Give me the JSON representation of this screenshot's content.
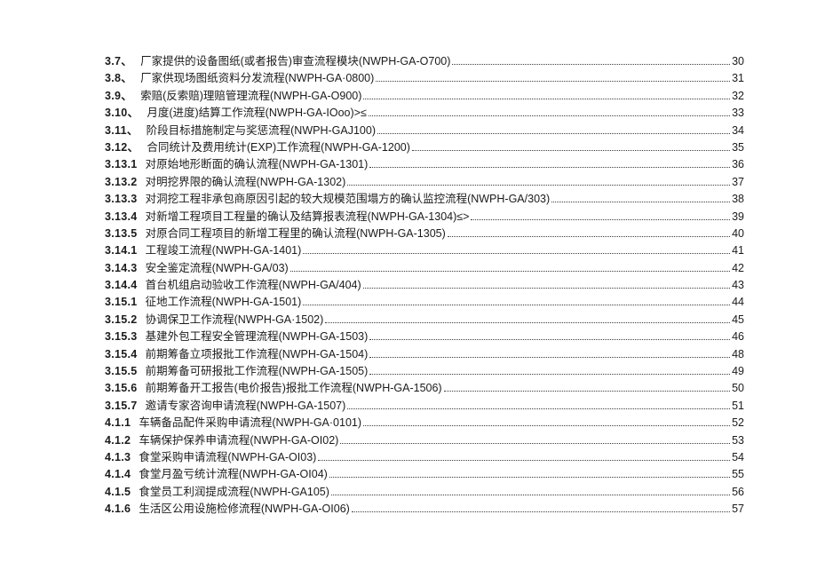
{
  "toc": {
    "text_color": "#1b1b1b",
    "leader_color": "#3c3c3c",
    "entries": [
      {
        "num": "3.7、",
        "title": "厂家提供的设备图纸(或者报告)审查流程模块(NWPH-GA-O700)",
        "page": "30"
      },
      {
        "num": "3.8、",
        "title": "厂家供现场图纸资料分发流程(NWPH-GA·0800)",
        "page": "31"
      },
      {
        "num": "3.9、",
        "title": "索赔(反索赔)理赔管理流程(NWPH-GA-O900)",
        "page": "32"
      },
      {
        "num": "3.10、",
        "title": "月度(进度)结算工作流程(NWPH-GA-IOoo)>≤",
        "page": "33"
      },
      {
        "num": "3.11、",
        "title": "阶段目标措施制定与奖惩流程(NWPH-GAJ100)",
        "page": "34"
      },
      {
        "num": "3.12、",
        "title": "合同统计及费用统计(EXP)工作流程(NWPH-GA-1200)",
        "page": "35"
      },
      {
        "num": "3.13.1",
        "title": "对原始地形断面的确认流程(NWPH-GA-1301)",
        "page": "36"
      },
      {
        "num": "3.13.2",
        "title": "对明挖界限的确认流程(NWPH-GA-1302)",
        "page": "37"
      },
      {
        "num": "3.13.3",
        "title": "对洞挖工程非承包商原因引起的较大规模范围塌方的确认监控流程(NWPH-GA/303)",
        "page": "38"
      },
      {
        "num": "3.13.4",
        "title": "对新增工程项目工程量的确认及结算报表流程(NWPH-GA-1304)≤>",
        "page": "39"
      },
      {
        "num": "3.13.5",
        "title": "对原合同工程项目的新增工程里的确认流程(NWPH-GA-1305)",
        "page": "40"
      },
      {
        "num": "3.14.1",
        "title": "工程竣工流程(NWPH-GA-1401)",
        "page": "41"
      },
      {
        "num": "3.14.3",
        "title": "安全鉴定流程(NWPH-GA/03)",
        "page": "42"
      },
      {
        "num": "3.14.4",
        "title": "首台机组启动验收工作流程(NWPH-GA/404)",
        "page": "43"
      },
      {
        "num": "3.15.1",
        "title": "征地工作流程(NWPH-GA-1501)",
        "page": "44"
      },
      {
        "num": "3.15.2",
        "title": "协调保卫工作流程(NWPH-GA·1502)",
        "page": "45"
      },
      {
        "num": "3.15.3",
        "title": "基建外包工程安全管理流程(NWPH-GA-1503)",
        "page": "46"
      },
      {
        "num": "3.15.4",
        "title": "前期筹备立项报批工作流程(NWPH-GA-1504)",
        "page": "48"
      },
      {
        "num": "3.15.5",
        "title": "前期筹备可研报批工作流程(NWPH-GA-1505)",
        "page": "49"
      },
      {
        "num": "3.15.6",
        "title": "前期筹备开工报告(电价报告)报批工作流程(NWPH-GA-1506)",
        "page": "50"
      },
      {
        "num": "3.15.7",
        "title": "邀请专家咨询申请流程(NWPH-GA-1507)",
        "page": "51"
      },
      {
        "num": "4.1.1",
        "title": "车辆备品配件采购申请流程(NWPH-GA·0101)",
        "page": "52"
      },
      {
        "num": "4.1.2",
        "title": "车辆保护保养申请流程(NWPH-GA-OI02)",
        "page": "53"
      },
      {
        "num": "4.1.3",
        "title": "食堂采购申请流程(NWPH-GA-OI03)",
        "page": "54"
      },
      {
        "num": "4.1.4",
        "title": "食堂月盈亏统计流程(NWPH-GA-OI04)",
        "page": "55"
      },
      {
        "num": "4.1.5",
        "title": "食堂员工利润提成流程(NWPH-GA105)",
        "page": "56"
      },
      {
        "num": "4.1.6",
        "title": "生活区公用设施检修流程(NWPH-GA-OI06)",
        "page": "57"
      }
    ]
  }
}
